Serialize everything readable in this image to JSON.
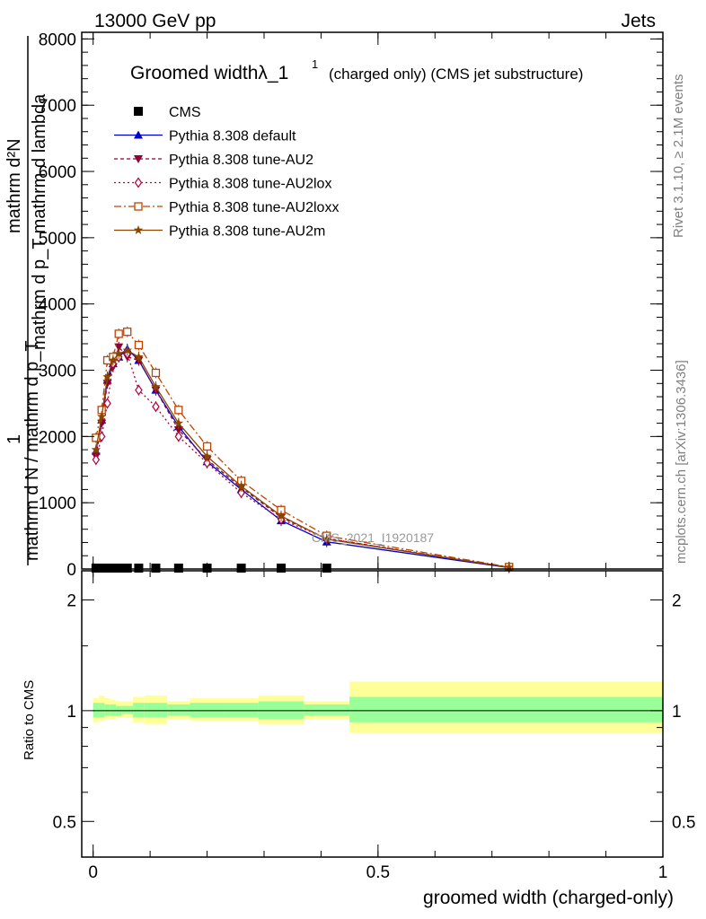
{
  "header": {
    "left": "13000 GeV pp",
    "right": "Jets"
  },
  "side_labels": {
    "rivet": "Rivet 3.1.10, ≥ 2.1M events",
    "mcplots": "mcplots.cern.ch [arXiv:1306.3436]"
  },
  "watermark": "CMS_2021_I1920187",
  "title": {
    "main": "Groomed widthλ_1",
    "sup": "1",
    "sub": "(charged only) (CMS jet substructure)"
  },
  "ylabel_main": {
    "num": "1",
    "num_frac_top": "mathrm d²N",
    "num_frac_bottom": "mathrm d p_T mathrm d lambda",
    "den": "mathrm d N / mathrm d p_T"
  },
  "ylabel_ratio": "Ratio to CMS",
  "xlabel": "groomed width (charged-only)",
  "colors": {
    "default": "#0000cc",
    "au2": "#8b0038",
    "au2lox": "#b0003a",
    "au2loxx": "#c04400",
    "au2m": "#8b4500",
    "band_stat": "#99ff99",
    "band_tot": "#ffff99"
  },
  "legend": [
    {
      "label": "CMS",
      "key": "cms"
    },
    {
      "label": "Pythia 8.308 default",
      "key": "default"
    },
    {
      "label": "Pythia 8.308 tune-AU2",
      "key": "au2"
    },
    {
      "label": "Pythia 8.308 tune-AU2lox",
      "key": "au2lox"
    },
    {
      "label": "Pythia 8.308 tune-AU2loxx",
      "key": "au2loxx"
    },
    {
      "label": "Pythia 8.308 tune-AU2m",
      "key": "au2m"
    }
  ],
  "chart_data": {
    "type": "line",
    "xlim": [
      -0.02,
      1.0
    ],
    "ylim_main": [
      0,
      8100
    ],
    "ylim_ratio_log": [
      0.4,
      2.4
    ],
    "x_ticks": [
      {
        "v": 0,
        "label": "0"
      },
      {
        "v": 0.5,
        "label": "0.5"
      },
      {
        "v": 1,
        "label": "1"
      }
    ],
    "y_ticks_main": [
      {
        "v": 0,
        "label": "0"
      },
      {
        "v": 1000,
        "label": "1000"
      },
      {
        "v": 2000,
        "label": "2000"
      },
      {
        "v": 3000,
        "label": "3000"
      },
      {
        "v": 4000,
        "label": "4000"
      },
      {
        "v": 5000,
        "label": "5000"
      },
      {
        "v": 6000,
        "label": "6000"
      },
      {
        "v": 7000,
        "label": "7000"
      },
      {
        "v": 8000,
        "label": "8000"
      }
    ],
    "y_ticks_ratio": [
      {
        "v": 0.5,
        "label": "0.5"
      },
      {
        "v": 1,
        "label": "1"
      },
      {
        "v": 2,
        "label": "2"
      }
    ],
    "cms": {
      "x": [
        0.005,
        0.015,
        0.025,
        0.035,
        0.045,
        0.06,
        0.08,
        0.11,
        0.15,
        0.2,
        0.26,
        0.33,
        0.41
      ],
      "y": [
        0,
        0,
        0,
        0,
        0,
        0,
        0,
        0,
        0,
        0,
        0,
        0,
        0
      ]
    },
    "series": [
      {
        "name": "Pythia 8.308 default",
        "key": "default",
        "marker": "tri-up",
        "dash": "",
        "x": [
          0.005,
          0.015,
          0.025,
          0.035,
          0.045,
          0.06,
          0.08,
          0.11,
          0.15,
          0.2,
          0.26,
          0.33,
          0.41,
          0.73
        ],
        "y": [
          1780,
          2250,
          2850,
          3100,
          3200,
          3320,
          3150,
          2700,
          2150,
          1620,
          1200,
          730,
          410,
          20
        ]
      },
      {
        "name": "Pythia 8.308 tune-AU2",
        "key": "au2",
        "marker": "tri-down",
        "dash": "4,3",
        "x": [
          0.005,
          0.015,
          0.025,
          0.035,
          0.045,
          0.06,
          0.08,
          0.11,
          0.15,
          0.2,
          0.26,
          0.33,
          0.41,
          0.73
        ],
        "y": [
          1700,
          2200,
          2800,
          3050,
          3350,
          3200,
          3150,
          2700,
          2100,
          1650,
          1230,
          780,
          460,
          25
        ]
      },
      {
        "name": "Pythia 8.308 tune-AU2lox",
        "key": "au2lox",
        "marker": "diamond",
        "dash": "2,3",
        "x": [
          0.005,
          0.015,
          0.025,
          0.035,
          0.045,
          0.06,
          0.08,
          0.11,
          0.15,
          0.2,
          0.26,
          0.33,
          0.41,
          0.73
        ],
        "y": [
          1650,
          2000,
          2500,
          3100,
          3200,
          3250,
          2700,
          2450,
          2000,
          1600,
          1150,
          750,
          460,
          25
        ]
      },
      {
        "name": "Pythia 8.308 tune-AU2loxx",
        "key": "au2loxx",
        "marker": "square-open",
        "dash": "8,3,2,3",
        "x": [
          0.005,
          0.015,
          0.025,
          0.035,
          0.045,
          0.06,
          0.08,
          0.11,
          0.15,
          0.2,
          0.26,
          0.33,
          0.41,
          0.73
        ],
        "y": [
          1980,
          2400,
          3150,
          3200,
          3550,
          3580,
          3380,
          2960,
          2400,
          1850,
          1330,
          890,
          500,
          30
        ]
      },
      {
        "name": "Pythia 8.308 tune-AU2m",
        "key": "au2m",
        "marker": "star",
        "dash": "",
        "x": [
          0.005,
          0.015,
          0.025,
          0.035,
          0.045,
          0.06,
          0.08,
          0.11,
          0.15,
          0.2,
          0.26,
          0.33,
          0.41,
          0.73
        ],
        "y": [
          1800,
          2300,
          2900,
          3150,
          3250,
          3300,
          3200,
          2750,
          2200,
          1700,
          1250,
          800,
          450,
          25
        ]
      }
    ],
    "ratio_bands": [
      {
        "x0": 0.0,
        "x1": 0.01,
        "stat": [
          0.96,
          1.05
        ],
        "tot": [
          0.93,
          1.08
        ]
      },
      {
        "x0": 0.01,
        "x1": 0.02,
        "stat": [
          0.96,
          1.05
        ],
        "tot": [
          0.94,
          1.1
        ]
      },
      {
        "x0": 0.02,
        "x1": 0.03,
        "stat": [
          0.97,
          1.04
        ],
        "tot": [
          0.95,
          1.08
        ]
      },
      {
        "x0": 0.03,
        "x1": 0.04,
        "stat": [
          0.97,
          1.04
        ],
        "tot": [
          0.95,
          1.07
        ]
      },
      {
        "x0": 0.04,
        "x1": 0.05,
        "stat": [
          0.97,
          1.03
        ],
        "tot": [
          0.96,
          1.06
        ]
      },
      {
        "x0": 0.05,
        "x1": 0.07,
        "stat": [
          0.98,
          1.03
        ],
        "tot": [
          0.96,
          1.06
        ]
      },
      {
        "x0": 0.07,
        "x1": 0.09,
        "stat": [
          0.96,
          1.05
        ],
        "tot": [
          0.93,
          1.09
        ]
      },
      {
        "x0": 0.09,
        "x1": 0.13,
        "stat": [
          0.96,
          1.05
        ],
        "tot": [
          0.92,
          1.1
        ]
      },
      {
        "x0": 0.13,
        "x1": 0.17,
        "stat": [
          0.97,
          1.04
        ],
        "tot": [
          0.95,
          1.06
        ]
      },
      {
        "x0": 0.17,
        "x1": 0.23,
        "stat": [
          0.96,
          1.05
        ],
        "tot": [
          0.94,
          1.08
        ]
      },
      {
        "x0": 0.23,
        "x1": 0.29,
        "stat": [
          0.96,
          1.05
        ],
        "tot": [
          0.94,
          1.08
        ]
      },
      {
        "x0": 0.29,
        "x1": 0.37,
        "stat": [
          0.95,
          1.06
        ],
        "tot": [
          0.92,
          1.1
        ]
      },
      {
        "x0": 0.37,
        "x1": 0.45,
        "stat": [
          0.97,
          1.04
        ],
        "tot": [
          0.95,
          1.06
        ]
      },
      {
        "x0": 0.45,
        "x1": 1.0,
        "stat": [
          0.93,
          1.09
        ],
        "tot": [
          0.87,
          1.2
        ]
      }
    ]
  }
}
